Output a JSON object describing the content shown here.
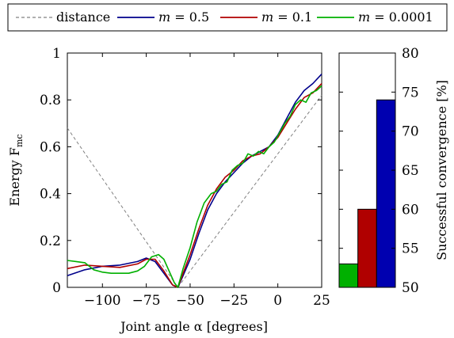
{
  "chart_data": [
    {
      "type": "line",
      "xlabel": "Joint angle α [degrees]",
      "ylabel": "Energy F",
      "ylabel_sub": "mc",
      "xlim": [
        -120,
        25
      ],
      "ylim": [
        0,
        1
      ],
      "x_ticks": [
        -100,
        -75,
        -50,
        -25,
        0,
        25
      ],
      "x_tick_labels": [
        "−100",
        "−75",
        "−50",
        "−25",
        "0",
        "25"
      ],
      "y_ticks": [
        0,
        0.2,
        0.4,
        0.6,
        0.8,
        1
      ],
      "y_tick_labels": [
        "0",
        "0.2",
        "0.4",
        "0.6",
        "0.8",
        "1"
      ],
      "grid": false,
      "legend": {
        "placement": "top",
        "entries": [
          {
            "key": "distance",
            "text": "distance",
            "color": "#808080",
            "dash": "4 3"
          },
          {
            "key": "m05",
            "prefix": "m",
            "text": " = 0.5",
            "color": "#00008b",
            "dash": ""
          },
          {
            "key": "m01",
            "prefix": "m",
            "text": " = 0.1",
            "color": "#b00000",
            "dash": ""
          },
          {
            "key": "m00001",
            "prefix": "m",
            "text": " = 0.0001",
            "color": "#00b000",
            "dash": ""
          }
        ]
      },
      "series": [
        {
          "name": "distance",
          "color": "#808080",
          "dash": "4 3",
          "x": [
            -120,
            -57,
            25
          ],
          "y": [
            0.68,
            0,
            0.82
          ]
        },
        {
          "name": "m = 0.5",
          "color": "#00008b",
          "dash": "",
          "x": [
            -120,
            -110,
            -100,
            -90,
            -80,
            -75,
            -70,
            -65,
            -60,
            -57,
            -54,
            -50,
            -45,
            -40,
            -35,
            -30,
            -25,
            -20,
            -15,
            -10,
            -5,
            0,
            5,
            10,
            15,
            20,
            25
          ],
          "y": [
            0.05,
            0.075,
            0.09,
            0.095,
            0.11,
            0.125,
            0.11,
            0.06,
            0.01,
            0,
            0.05,
            0.12,
            0.23,
            0.33,
            0.4,
            0.45,
            0.49,
            0.53,
            0.56,
            0.58,
            0.6,
            0.65,
            0.72,
            0.79,
            0.84,
            0.87,
            0.91
          ]
        },
        {
          "name": "m = 0.1",
          "color": "#b00000",
          "dash": "",
          "x": [
            -120,
            -110,
            -100,
            -90,
            -80,
            -75,
            -70,
            -65,
            -60,
            -57,
            -54,
            -50,
            -45,
            -40,
            -35,
            -30,
            -25,
            -20,
            -15,
            -10,
            -5,
            0,
            5,
            10,
            15,
            20,
            25
          ],
          "y": [
            0.08,
            0.095,
            0.09,
            0.085,
            0.1,
            0.12,
            0.12,
            0.07,
            0.01,
            0,
            0.06,
            0.14,
            0.25,
            0.35,
            0.42,
            0.47,
            0.5,
            0.54,
            0.56,
            0.57,
            0.6,
            0.64,
            0.7,
            0.76,
            0.81,
            0.83,
            0.87
          ]
        },
        {
          "name": "m = 0.0001",
          "color": "#00b000",
          "dash": "",
          "x": [
            -120,
            -115,
            -110,
            -105,
            -100,
            -95,
            -90,
            -85,
            -80,
            -76,
            -72,
            -68,
            -65,
            -62,
            -59,
            -57,
            -54,
            -50,
            -46,
            -42,
            -38,
            -35,
            -32,
            -29,
            -26,
            -23,
            -20,
            -17,
            -14,
            -11,
            -8,
            -5,
            -2,
            1,
            4,
            7,
            10,
            13,
            16,
            19,
            22,
            25
          ],
          "y": [
            0.115,
            0.11,
            0.105,
            0.075,
            0.065,
            0.06,
            0.06,
            0.06,
            0.07,
            0.09,
            0.13,
            0.14,
            0.12,
            0.07,
            0.02,
            0,
            0.08,
            0.17,
            0.28,
            0.36,
            0.4,
            0.41,
            0.44,
            0.45,
            0.5,
            0.52,
            0.53,
            0.57,
            0.56,
            0.58,
            0.57,
            0.6,
            0.62,
            0.66,
            0.7,
            0.73,
            0.78,
            0.8,
            0.79,
            0.83,
            0.84,
            0.86
          ]
        }
      ]
    },
    {
      "type": "bar",
      "ylabel": "Successful convergence [%]",
      "ylim": [
        50,
        80
      ],
      "y_ticks": [
        50,
        55,
        60,
        65,
        70,
        75,
        80
      ],
      "y_tick_labels": [
        "50",
        "55",
        "60",
        "65",
        "70",
        "75",
        "80"
      ],
      "categories": [
        "m = 0.0001",
        "m = 0.1",
        "m = 0.5"
      ],
      "values": [
        53,
        60,
        74
      ],
      "colors": [
        "#00b000",
        "#b00000",
        "#0000b0"
      ]
    }
  ]
}
